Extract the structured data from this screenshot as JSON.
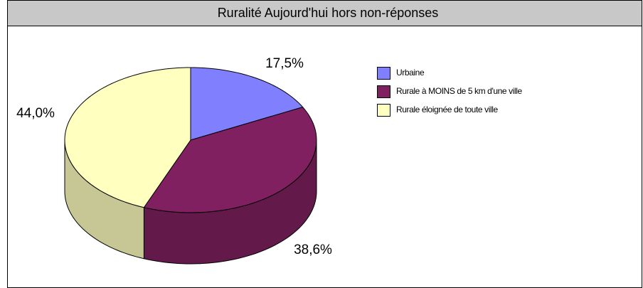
{
  "chart_data": {
    "type": "pie3d",
    "title": "Ruralité Aujourd'hui hors non-réponses",
    "categories": [
      "Urbaine",
      "Rurale à MOINS de 5 km d'une ville",
      "Rurale éloignée de toute ville"
    ],
    "values": [
      17.5,
      38.6,
      44.0
    ],
    "value_labels": [
      "17,5%",
      "38,6%",
      "44,0%"
    ],
    "colors": [
      "#8080ff",
      "#802060",
      "#ffffc0"
    ],
    "legend": "right"
  }
}
